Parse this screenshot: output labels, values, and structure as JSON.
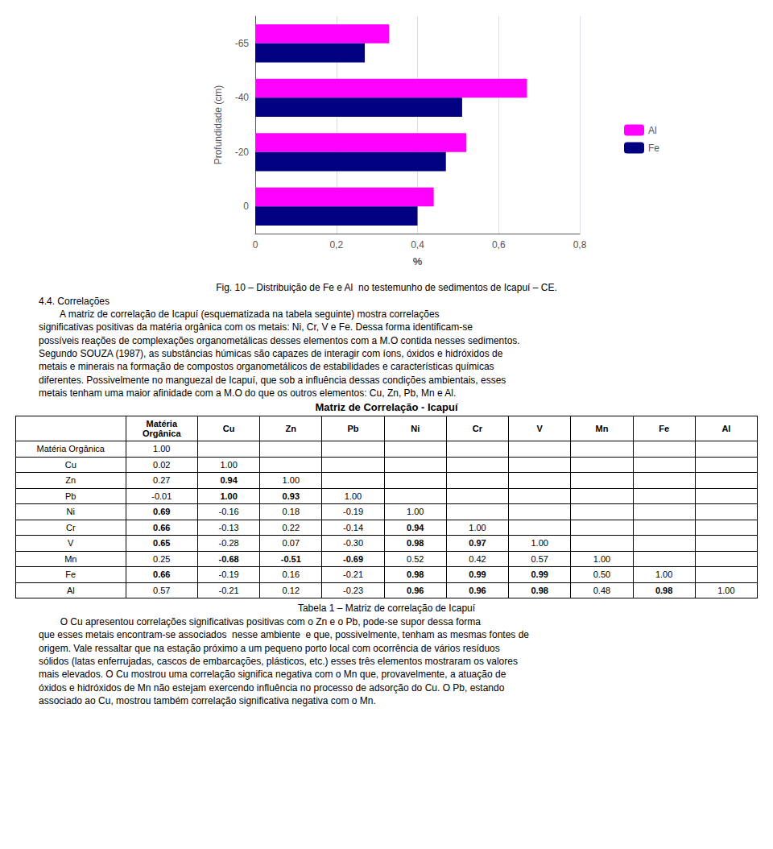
{
  "chart_data": {
    "type": "bar",
    "orientation": "horizontal",
    "categories": [
      0,
      -20,
      -40,
      -65
    ],
    "series": [
      {
        "name": "Al",
        "color": "#FF00FF",
        "values": [
          0.44,
          0.52,
          0.67,
          0.33
        ]
      },
      {
        "name": "Fe",
        "color": "#000080",
        "values": [
          0.4,
          0.47,
          0.51,
          0.27
        ]
      }
    ],
    "xlabel": "%",
    "ylabel": "Profundidade (cm)",
    "xlim": [
      0,
      0.8
    ],
    "xticks": [
      0,
      {
        "value": 0.2,
        "label": "0,2"
      },
      {
        "value": 0.4,
        "label": "0,4"
      },
      {
        "value": 0.6,
        "label": "0,6"
      },
      {
        "value": 0.8,
        "label": "0,8"
      }
    ],
    "grid": true,
    "legend": "right"
  },
  "caption": "Fig. 10 – Distribuição de Fe e Al  no testemunho de sedimentos de Icapuí – CE.",
  "section_header": "4.4. Correlações",
  "paragraphs": [
    [
      "        A matriz de correlação de Icapuí (esquematizada na tabela seguinte) mostra correlações",
      "significativas positivas da matéria orgânica com os metais: Ni, Cr, V e Fe. Dessa forma identificam-se",
      "possíveis reações de complexações organometálicas desses elementos com a M.O contida nesses sedimentos.",
      "Segundo SOUZA (1987), as substâncias húmicas são capazes de interagir com íons, óxidos e hidróxidos de",
      "metais e minerais na formação de compostos organometálicos de estabilidades e características químicas",
      "diferentes. Possivelmente no manguezal de Icapuí, que sob a influência dessas condições ambientais, esses",
      "metais tenham uma maior afinidade com a M.O do que os outros elementos: Cu, Zn, Pb, Mn e Al."
    ],
    [
      "        O Cu apresentou correlações significativas positivas com o Zn e o Pb, pode-se supor dessa forma",
      "que esses metais encontram-se associados  nesse ambiente  e que, possivelmente, tenham as mesmas fontes de",
      "origem. Vale ressaltar que na estação próximo a um pequeno porto local com ocorrência de vários resíduos",
      "sólidos (latas enferrujadas, cascos de embarcações, plásticos, etc.) esses três elementos mostraram os valores",
      "mais elevados. O Cu mostrou uma correlação significa negativa com o Mn que, provavelmente, a atuação de",
      "óxidos e hidróxidos de Mn não estejam exercendo influência no processo de adsorção do Cu. O Pb, estando",
      "associado ao Cu, mostrou também correlação significativa negativa com o Mn."
    ]
  ],
  "table": {
    "title": "Matriz de Correlação - Icapuí",
    "columns": [
      "",
      "Matéria\nOrgânica",
      "Cu",
      "Zn",
      "Pb",
      "Ni",
      "Cr",
      "V",
      "Mn",
      "Fe",
      "Al"
    ],
    "rows": [
      [
        "Matéria Orgânica",
        "1.00",
        "",
        "",
        "",
        "",
        "",
        "",
        "",
        "",
        ""
      ],
      [
        "Cu",
        "0.02",
        "1.00",
        "",
        "",
        "",
        "",
        "",
        "",
        "",
        ""
      ],
      [
        "Zn",
        "0.27",
        "0.94",
        "1.00",
        "",
        "",
        "",
        "",
        "",
        "",
        ""
      ],
      [
        "Pb",
        "-0.01",
        "1.00",
        "0.93",
        "1.00",
        "",
        "",
        "",
        "",
        "",
        ""
      ],
      [
        "Ni",
        "0.69",
        "-0.16",
        "0.18",
        "-0.19",
        "1.00",
        "",
        "",
        "",
        "",
        ""
      ],
      [
        "Cr",
        "0.66",
        "-0.13",
        "0.22",
        "-0.14",
        "0.94",
        "1.00",
        "",
        "",
        "",
        ""
      ],
      [
        "V",
        "0.65",
        "-0.28",
        "0.07",
        "-0.30",
        "0.98",
        "0.97",
        "1.00",
        "",
        "",
        ""
      ],
      [
        "Mn",
        "0.25",
        "-0.68",
        "-0.51",
        "-0.69",
        "0.52",
        "0.42",
        "0.57",
        "1.00",
        "",
        ""
      ],
      [
        "Fe",
        "0.66",
        "-0.19",
        "0.16",
        "-0.21",
        "0.98",
        "0.99",
        "0.99",
        "0.50",
        "1.00",
        ""
      ],
      [
        "Al",
        "0.57",
        "-0.21",
        "0.12",
        "-0.23",
        "0.96",
        "0.96",
        "0.98",
        "0.48",
        "0.98",
        "1.00"
      ]
    ],
    "bold_cells": [
      [
        2,
        1
      ],
      [
        3,
        1
      ],
      [
        3,
        2
      ],
      [
        4,
        0
      ],
      [
        5,
        0
      ],
      [
        5,
        4
      ],
      [
        6,
        0
      ],
      [
        6,
        4
      ],
      [
        6,
        5
      ],
      [
        7,
        1
      ],
      [
        7,
        2
      ],
      [
        7,
        3
      ],
      [
        8,
        0
      ],
      [
        8,
        4
      ],
      [
        8,
        5
      ],
      [
        8,
        6
      ],
      [
        9,
        4
      ],
      [
        9,
        5
      ],
      [
        9,
        6
      ],
      [
        9,
        8
      ]
    ],
    "caption": "Tabela 1 – Matriz de correlação de Icapuí"
  }
}
